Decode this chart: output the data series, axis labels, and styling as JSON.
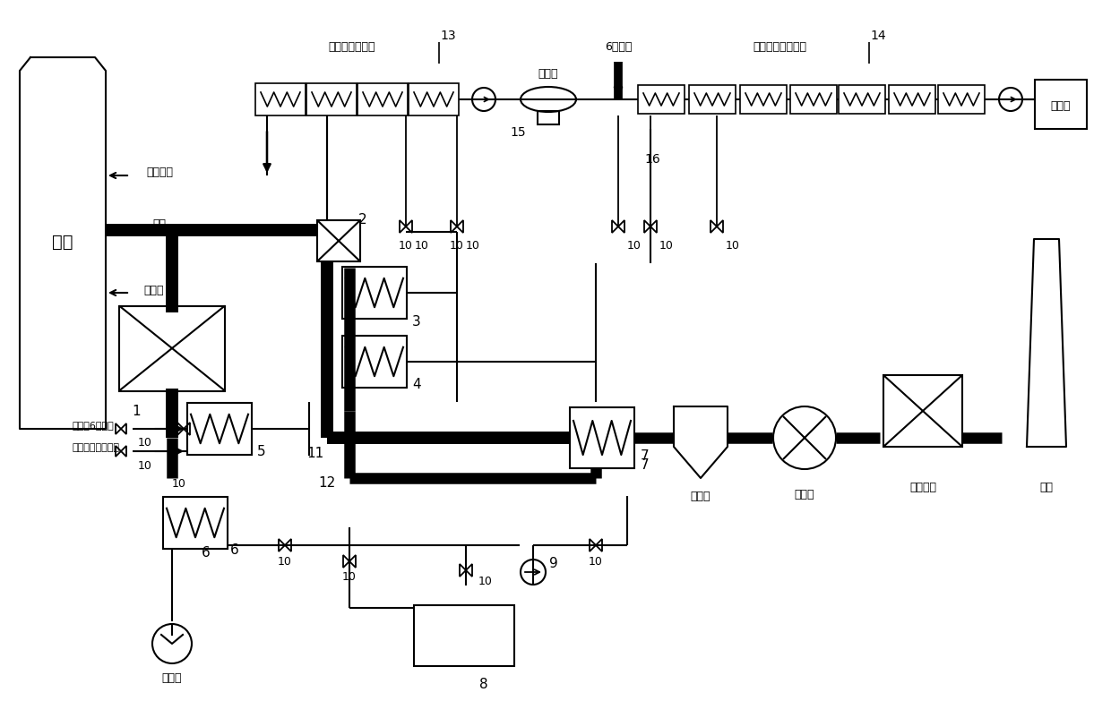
{
  "bg_color": "#ffffff",
  "labels": {
    "boiler": "锅炉",
    "flue_gas": "烟气",
    "primary_air": "一次风",
    "to_economizer": "去省煤器",
    "turbine_feed_system": "汽轮机给水系统",
    "deaerator": "除氧器",
    "stage6_extraction": "6段抽汽",
    "turbine_condensate_system": "汽轮机凝结水系统",
    "condenser": "凝汽器",
    "dust_collector": "除尘器",
    "induced_fan": "引风机",
    "desulfurization": "脱硫装置",
    "chimney": "烟囱",
    "blower": "送风机",
    "turbine_stage6_extraction": "汽轮机6段抽汽",
    "low_feed_or_condenser": "低加疏水或凝汽器"
  }
}
